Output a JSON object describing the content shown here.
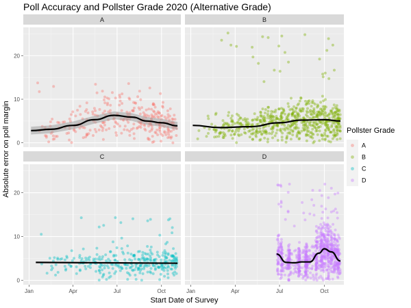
{
  "chart_data": {
    "type": "scatter",
    "title": "Poll Accuracy and Pollster Grade 2020 (Alternative Grade)",
    "xlabel": "Start Date of Survey",
    "ylabel": "Absolute error on poll margin",
    "x_range": [
      "2019-12-20",
      "2020-11-10"
    ],
    "x_ticks": [
      {
        "date": "2020-01-01",
        "label": "Jan"
      },
      {
        "date": "2020-04-01",
        "label": "Apr"
      },
      {
        "date": "2020-07-01",
        "label": "Jul"
      },
      {
        "date": "2020-10-01",
        "label": "Oct"
      }
    ],
    "ylim": [
      -1,
      26.5
    ],
    "y_ticks": [
      0,
      10,
      20
    ],
    "grid": true,
    "facets": [
      "A",
      "B",
      "C",
      "D"
    ],
    "legend": {
      "title": "Pollster Grade",
      "placement": "right",
      "entries": [
        {
          "label": "A",
          "color": "#F8766D"
        },
        {
          "label": "B",
          "color": "#7CAE00"
        },
        {
          "label": "C",
          "color": "#00BFC4"
        },
        {
          "label": "D",
          "color": "#C77CFF"
        }
      ]
    },
    "series": [
      {
        "name": "A",
        "color": "#F8766D",
        "date_range": [
          "2020-01-05",
          "2020-11-03"
        ],
        "error_range": [
          0,
          16.5
        ],
        "trend": [
          {
            "date": "2020-01-05",
            "value": 2.8
          },
          {
            "date": "2020-02-15",
            "value": 3.1
          },
          {
            "date": "2020-04-01",
            "value": 4.0
          },
          {
            "date": "2020-05-15",
            "value": 5.3
          },
          {
            "date": "2020-06-25",
            "value": 6.3
          },
          {
            "date": "2020-08-01",
            "value": 5.9
          },
          {
            "date": "2020-09-01",
            "value": 5.0
          },
          {
            "date": "2020-10-01",
            "value": 4.6
          },
          {
            "date": "2020-11-03",
            "value": 3.9
          }
        ]
      },
      {
        "name": "B",
        "color": "#7CAE00",
        "date_range": [
          "2020-01-05",
          "2020-11-03"
        ],
        "error_range": [
          0,
          25.5
        ],
        "trend": [
          {
            "date": "2020-01-05",
            "value": 4.0
          },
          {
            "date": "2020-03-01",
            "value": 3.5
          },
          {
            "date": "2020-05-01",
            "value": 3.7
          },
          {
            "date": "2020-07-01",
            "value": 4.6
          },
          {
            "date": "2020-08-15",
            "value": 5.2
          },
          {
            "date": "2020-10-01",
            "value": 5.3
          },
          {
            "date": "2020-11-03",
            "value": 5.0
          }
        ]
      },
      {
        "name": "C",
        "color": "#00BFC4",
        "date_range": [
          "2020-01-15",
          "2020-11-03"
        ],
        "error_range": [
          0,
          14.5
        ],
        "trend": [
          {
            "date": "2020-01-15",
            "value": 4.1
          },
          {
            "date": "2020-11-03",
            "value": 3.9
          }
        ]
      },
      {
        "name": "D",
        "color": "#C77CFF",
        "date_range": [
          "2020-06-25",
          "2020-11-03"
        ],
        "error_range": [
          0,
          22
        ],
        "trend": [
          {
            "date": "2020-06-25",
            "value": 6.0
          },
          {
            "date": "2020-07-15",
            "value": 4.1
          },
          {
            "date": "2020-08-01",
            "value": 4.0
          },
          {
            "date": "2020-08-15",
            "value": 4.2
          },
          {
            "date": "2020-09-01",
            "value": 4.2
          },
          {
            "date": "2020-09-20",
            "value": 6.2
          },
          {
            "date": "2020-10-01",
            "value": 7.2
          },
          {
            "date": "2020-10-15",
            "value": 6.5
          },
          {
            "date": "2020-11-03",
            "value": 4.4
          }
        ]
      }
    ]
  }
}
